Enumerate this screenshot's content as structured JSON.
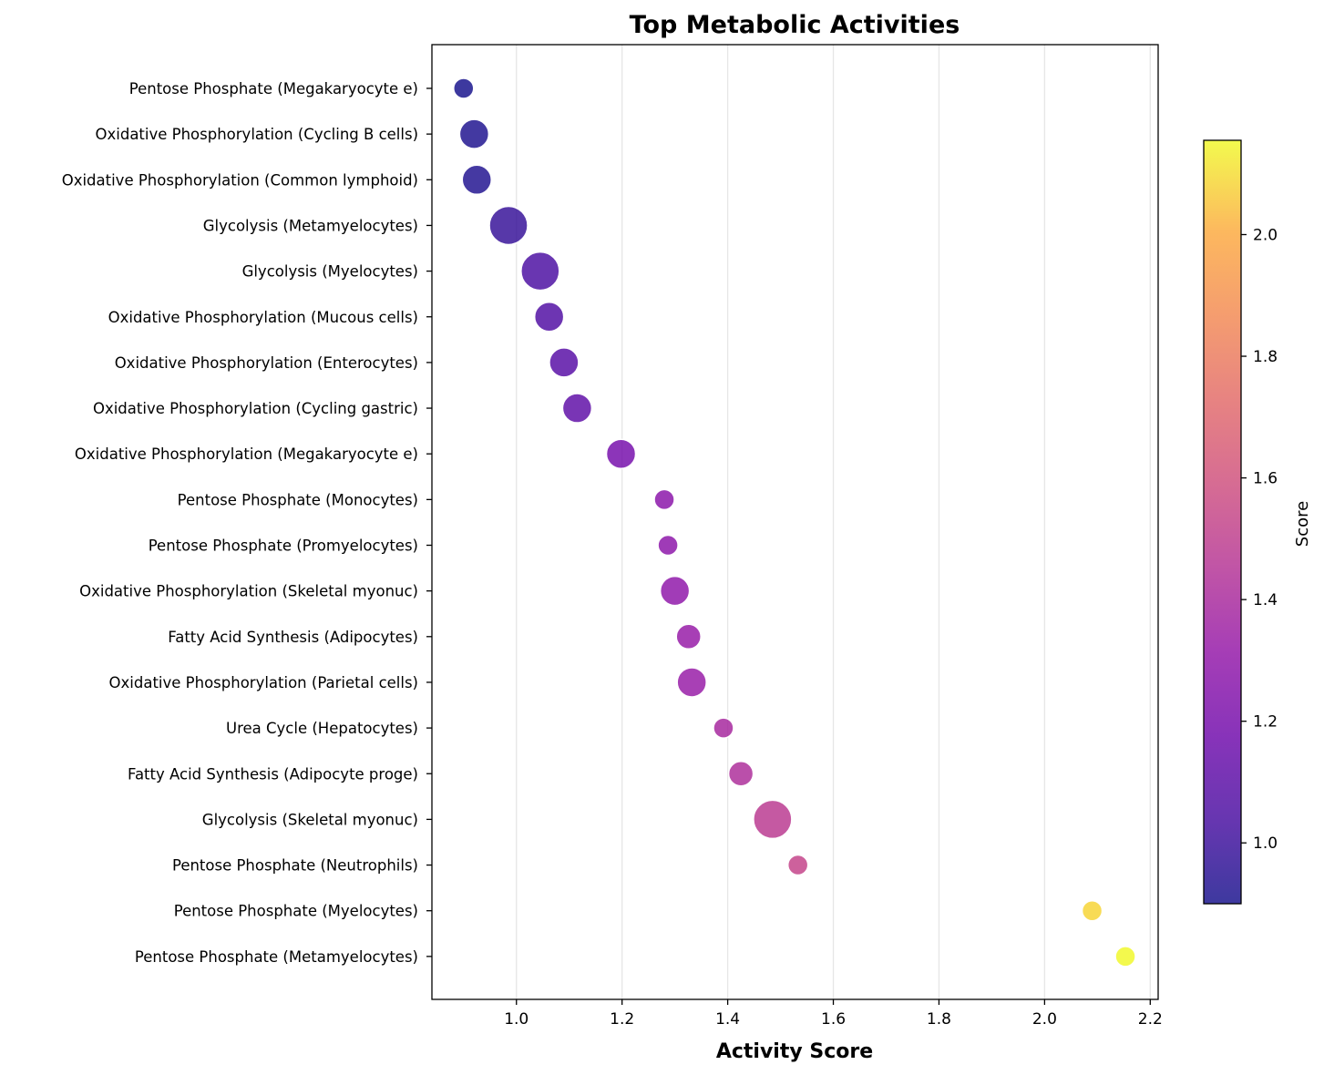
{
  "chart_data": {
    "type": "scatter",
    "title": "Top Metabolic Activities",
    "xlabel": "Activity Score",
    "ylabel": "",
    "xlim": [
      0.84,
      2.215
    ],
    "xticks": [
      "1.0",
      "1.2",
      "1.4",
      "1.6",
      "1.8",
      "2.0",
      "2.2"
    ],
    "grid": "vertical",
    "colormap": "plasma",
    "colorbar": {
      "label": "Score",
      "range": [
        0.9,
        2.155
      ],
      "ticks": [
        "1.0",
        "1.2",
        "1.4",
        "1.6",
        "1.8",
        "2.0"
      ]
    },
    "points": [
      {
        "label": "Pentose Phosphate (Megakaryocyte e)",
        "x": 0.9,
        "size": 1
      },
      {
        "label": "Oxidative Phosphorylation (Cycling B cells)",
        "x": 0.92,
        "size": 3
      },
      {
        "label": "Oxidative Phosphorylation (Common lymphoid)",
        "x": 0.925,
        "size": 3
      },
      {
        "label": "Glycolysis (Metamyelocytes)",
        "x": 0.985,
        "size": 5
      },
      {
        "label": "Glycolysis (Myelocytes)",
        "x": 1.045,
        "size": 5
      },
      {
        "label": "Oxidative Phosphorylation (Mucous cells)",
        "x": 1.062,
        "size": 3
      },
      {
        "label": "Oxidative Phosphorylation (Enterocytes)",
        "x": 1.09,
        "size": 3
      },
      {
        "label": "Oxidative Phosphorylation (Cycling gastric)",
        "x": 1.115,
        "size": 3
      },
      {
        "label": "Oxidative Phosphorylation (Megakaryocyte e)",
        "x": 1.198,
        "size": 3
      },
      {
        "label": "Pentose Phosphate (Monocytes)",
        "x": 1.28,
        "size": 1
      },
      {
        "label": "Pentose Phosphate (Promyelocytes)",
        "x": 1.287,
        "size": 1
      },
      {
        "label": "Oxidative Phosphorylation (Skeletal myonuc)",
        "x": 1.3,
        "size": 3
      },
      {
        "label": "Fatty Acid Synthesis (Adipocytes)",
        "x": 1.326,
        "size": 2
      },
      {
        "label": "Oxidative Phosphorylation (Parietal cells)",
        "x": 1.332,
        "size": 3
      },
      {
        "label": "Urea Cycle (Hepatocytes)",
        "x": 1.392,
        "size": 1
      },
      {
        "label": "Fatty Acid Synthesis (Adipocyte proge)",
        "x": 1.425,
        "size": 2
      },
      {
        "label": "Glycolysis (Skeletal myonuc)",
        "x": 1.485,
        "size": 5
      },
      {
        "label": "Pentose Phosphate (Neutrophils)",
        "x": 1.533,
        "size": 1
      },
      {
        "label": "Pentose Phosphate (Myelocytes)",
        "x": 2.09,
        "size": 1
      },
      {
        "label": "Pentose Phosphate (Metamyelocytes)",
        "x": 2.153,
        "size": 1
      }
    ]
  }
}
